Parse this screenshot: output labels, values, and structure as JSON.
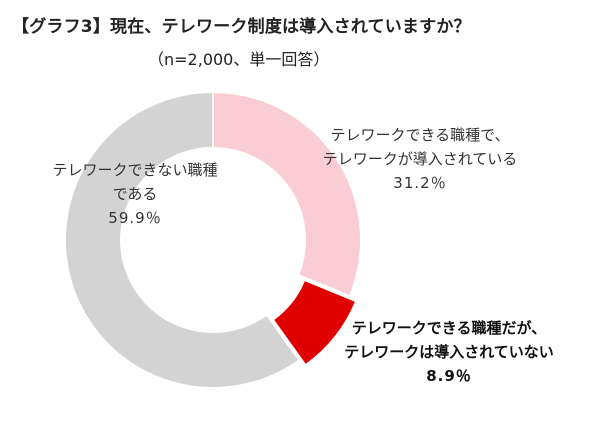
{
  "title": "【グラフ3】現在、テレワーク制度は導入されていますか？",
  "subtitle": "（n=2,000、単一回答）",
  "colors": {
    "pink": "#f9cdd3",
    "red": "#e00000",
    "gray": "#d3d3d3",
    "border": "#ffffff",
    "text": "#333333"
  },
  "chart_data": {
    "type": "pie",
    "donut": true,
    "title": "【グラフ3】現在、テレワーク制度は導入されていますか？",
    "subtitle": "（n=2,000、単一回答）",
    "unit": "%",
    "slices": [
      {
        "line1": "テレワークできる職種で、",
        "line2": "テレワークが導入されている",
        "value": 31.2,
        "value_label": "31.2％",
        "color": "#f9cdd3",
        "bold": false
      },
      {
        "line1": "テレワークできる職種だが、",
        "line2": "テレワークは導入されていない",
        "value": 8.9,
        "value_label": "8.9％",
        "color": "#e00000",
        "bold": true,
        "exploded": true
      },
      {
        "line1": "テレワークできない職種",
        "line2": "である",
        "value": 59.9,
        "value_label": "59.9％",
        "color": "#d3d3d3",
        "bold": false
      }
    ]
  }
}
